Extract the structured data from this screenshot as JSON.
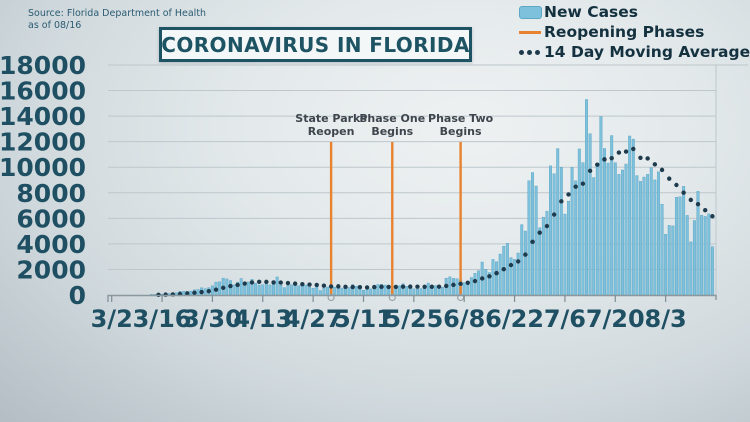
{
  "source": {
    "line1": "Source: Florida Department of Health",
    "line2": "as of 08/16"
  },
  "title": "CORONAVIRUS IN FLORIDA",
  "legend": [
    {
      "label": "New Cases",
      "type": "bar-swatch",
      "color": "#7dc1dc"
    },
    {
      "label": "Reopening Phases",
      "type": "line-swatch",
      "color": "#e8822f"
    },
    {
      "label": "14 Day Moving Average",
      "type": "dots-swatch",
      "color": "#1e3b4d"
    }
  ],
  "chart_data": {
    "type": "bar",
    "title": "CORONAVIRUS IN FLORIDA",
    "start_date": "3/2",
    "end_date": "8/16",
    "ylim": [
      0,
      18000
    ],
    "y_ticks": [
      0,
      2000,
      4000,
      6000,
      8000,
      10000,
      12000,
      14000,
      16000,
      18000
    ],
    "x_tick_labels": [
      "3/2",
      "3/16",
      "3/30",
      "4/13",
      "4/27",
      "5/11",
      "5/25",
      "6/8",
      "6/22",
      "7/6",
      "7/20",
      "8/3"
    ],
    "x_tick_days": [
      0,
      14,
      28,
      42,
      56,
      70,
      84,
      98,
      112,
      126,
      140,
      154
    ],
    "grid": true,
    "series": [
      {
        "name": "New Cases",
        "type": "bar",
        "color": "#7dc1dc",
        "daily_values": [
          2,
          1,
          2,
          1,
          3,
          4,
          7,
          9,
          13,
          19,
          29,
          46,
          48,
          60,
          70,
          87,
          105,
          146,
          180,
          279,
          289,
          288,
          306,
          404,
          430,
          563,
          500,
          578,
          723,
          1007,
          1033,
          1317,
          1260,
          1133,
          800,
          1006,
          1286,
          911,
          1021,
          1222,
          932,
          779,
          808,
          868,
          789,
          979,
          1413,
          770,
          577,
          757,
          796,
          742,
          733,
          863,
          776,
          614,
          534,
          708,
          347,
          536,
          623,
          736,
          615,
          819,
          542,
          507,
          588,
          808,
          681,
          529,
          370,
          606,
          479,
          739,
          823,
          837,
          777,
          593,
          502,
          527,
          724,
          874,
          673,
          640,
          486,
          446,
          506,
          613,
          930,
          735,
          738,
          667,
          617,
          1317,
          1419,
          1305,
          1270,
          1180,
          966,
          1096,
          1371,
          1698,
          1902,
          2581,
          2016,
          1758,
          2783,
          2610,
          3207,
          3822,
          4049,
          2926,
          2786,
          3286,
          5508,
          5004,
          8942,
          9585,
          8530,
          5266,
          6093,
          6563,
          10109,
          9488,
          11458,
          9999,
          6336,
          7347,
          9989,
          8935,
          11433,
          10360,
          15300,
          12624,
          9194,
          10181,
          13965,
          11466,
          10328,
          12478,
          10347,
          9440,
          9785,
          10249,
          12444,
          12199,
          9344,
          8892,
          9230,
          9446,
          9956,
          9007,
          9642,
          7104,
          4752,
          5446,
          5409,
          7650,
          7686,
          8502,
          6229,
          4155,
          5831,
          8109,
          6236,
          6148,
          6352,
          3779
        ]
      },
      {
        "name": "14 Day Moving Average",
        "type": "dotted-line",
        "color": "#1e3b4d",
        "window": 14,
        "derived": "14-day moving average of New Cases"
      },
      {
        "name": "Reopening Phases",
        "type": "vertical-line",
        "color": "#e8822f",
        "events": [
          {
            "label_line1": "State Parks",
            "label_line2": "Reopen",
            "day_index": 61
          },
          {
            "label_line1": "Phase One",
            "label_line2": "Begins",
            "day_index": 78
          },
          {
            "label_line1": "Phase Two",
            "label_line2": "Begins",
            "day_index": 97
          }
        ]
      }
    ]
  }
}
